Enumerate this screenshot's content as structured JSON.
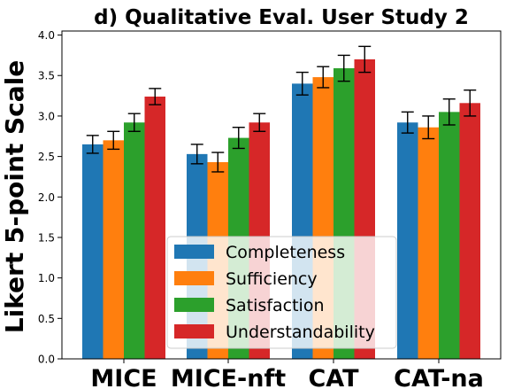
{
  "chart_data": {
    "type": "bar",
    "title": "d) Qualitative Eval. User Study 2",
    "xlabel": "",
    "ylabel": "Likert 5-point Scale",
    "categories": [
      "MICE",
      "MICE-nft",
      "CAT",
      "CAT-na"
    ],
    "yticks": [
      "0.0",
      "0.5",
      "1.0",
      "1.5",
      "2.0",
      "2.5",
      "3.0",
      "3.5",
      "4.0"
    ],
    "ylim": [
      0,
      4.05
    ],
    "grid": false,
    "legend_position": "lower-center",
    "series": [
      {
        "name": "Completeness",
        "color": "#1f77b4",
        "values": [
          2.65,
          2.53,
          3.4,
          2.92
        ],
        "errors": [
          0.11,
          0.12,
          0.14,
          0.13
        ]
      },
      {
        "name": "Sufficiency",
        "color": "#ff7f0e",
        "values": [
          2.7,
          2.43,
          3.48,
          2.86
        ],
        "errors": [
          0.11,
          0.12,
          0.13,
          0.14
        ]
      },
      {
        "name": "Satisfaction",
        "color": "#2ca02c",
        "values": [
          2.92,
          2.73,
          3.59,
          3.05
        ],
        "errors": [
          0.11,
          0.13,
          0.16,
          0.16
        ]
      },
      {
        "name": "Understandability",
        "color": "#d62728",
        "values": [
          3.24,
          2.92,
          3.7,
          3.16
        ],
        "errors": [
          0.1,
          0.11,
          0.16,
          0.16
        ]
      }
    ]
  }
}
